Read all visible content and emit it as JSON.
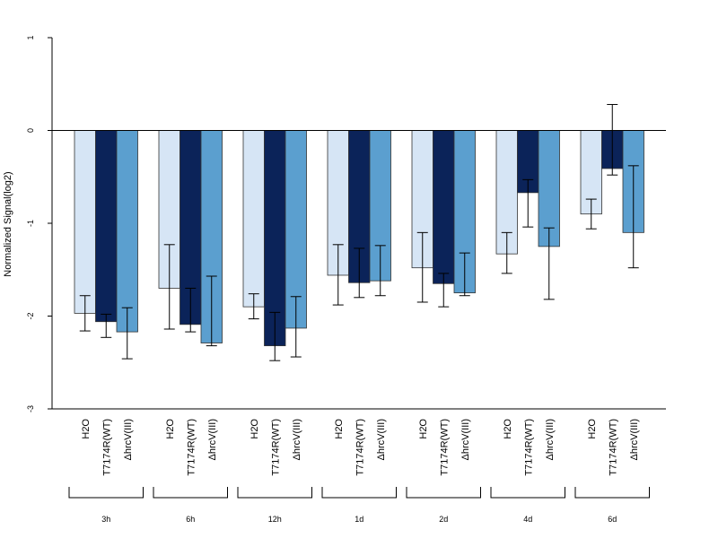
{
  "chart_data": {
    "type": "bar",
    "ylabel": "Normalized Signal(log2)",
    "ylim": [
      -3,
      1
    ],
    "yticks": [
      1,
      0,
      -1,
      -2,
      -3
    ],
    "baseline": 0,
    "bar_labels": [
      "H2O",
      "T7174R(WT)",
      "ΔhrcV(III)"
    ],
    "groups": [
      "3h",
      "6h",
      "12h",
      "1d",
      "2d",
      "4d",
      "6d"
    ],
    "series": [
      {
        "name": "H2O",
        "color": "#d6e5f5",
        "values": [
          -1.97,
          -1.7,
          -1.9,
          -1.56,
          -1.48,
          -1.33,
          -0.9
        ],
        "err_low": [
          -2.16,
          -2.14,
          -2.03,
          -1.88,
          -1.85,
          -1.54,
          -1.06
        ],
        "err_high": [
          -1.78,
          -1.23,
          -1.76,
          -1.23,
          -1.1,
          -1.1,
          -0.74
        ]
      },
      {
        "name": "T7174R(WT)",
        "color": "#0b2359",
        "values": [
          -2.06,
          -2.09,
          -2.32,
          -1.64,
          -1.65,
          -0.67,
          -0.41
        ],
        "err_low": [
          -2.23,
          -2.17,
          -2.48,
          -1.8,
          -1.9,
          -1.04,
          -0.48
        ],
        "err_high": [
          -1.98,
          -1.7,
          -1.96,
          -1.27,
          -1.54,
          -0.53,
          0.28
        ]
      },
      {
        "name": "ΔhrcV(III)",
        "color": "#5b9fcf",
        "values": [
          -2.17,
          -2.29,
          -2.13,
          -1.62,
          -1.75,
          -1.25,
          -1.1
        ],
        "err_low": [
          -2.46,
          -2.32,
          -2.44,
          -1.78,
          -1.78,
          -1.82,
          -1.48
        ],
        "err_high": [
          -1.91,
          -1.57,
          -1.79,
          -1.24,
          -1.32,
          -1.05,
          -0.38
        ]
      }
    ],
    "grid": false,
    "legend": "none"
  }
}
